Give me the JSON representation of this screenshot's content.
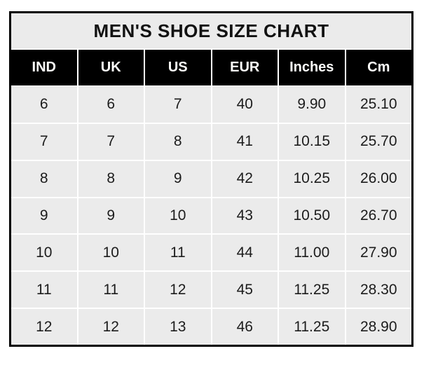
{
  "title": "MEN'S SHOE SIZE CHART",
  "colors": {
    "page_bg": "#ffffff",
    "table_border": "#000000",
    "title_bg": "#ebebeb",
    "header_bg": "#000000",
    "header_text": "#fdfdfb",
    "cell_bg": "#ebebeb",
    "cell_text": "#1c1c1c",
    "gutter": "#ffffff"
  },
  "chart_data": {
    "type": "table",
    "title": "MEN'S SHOE SIZE CHART",
    "columns": [
      "IND",
      "UK",
      "US",
      "EUR",
      "Inches",
      "Cm"
    ],
    "rows": [
      [
        "6",
        "6",
        "7",
        "40",
        "9.90",
        "25.10"
      ],
      [
        "7",
        "7",
        "8",
        "41",
        "10.15",
        "25.70"
      ],
      [
        "8",
        "8",
        "9",
        "42",
        "10.25",
        "26.00"
      ],
      [
        "9",
        "9",
        "10",
        "43",
        "10.50",
        "26.70"
      ],
      [
        "10",
        "10",
        "11",
        "44",
        "11.00",
        "27.90"
      ],
      [
        "11",
        "11",
        "12",
        "45",
        "11.25",
        "28.30"
      ],
      [
        "12",
        "12",
        "13",
        "46",
        "11.25",
        "28.90"
      ]
    ]
  }
}
